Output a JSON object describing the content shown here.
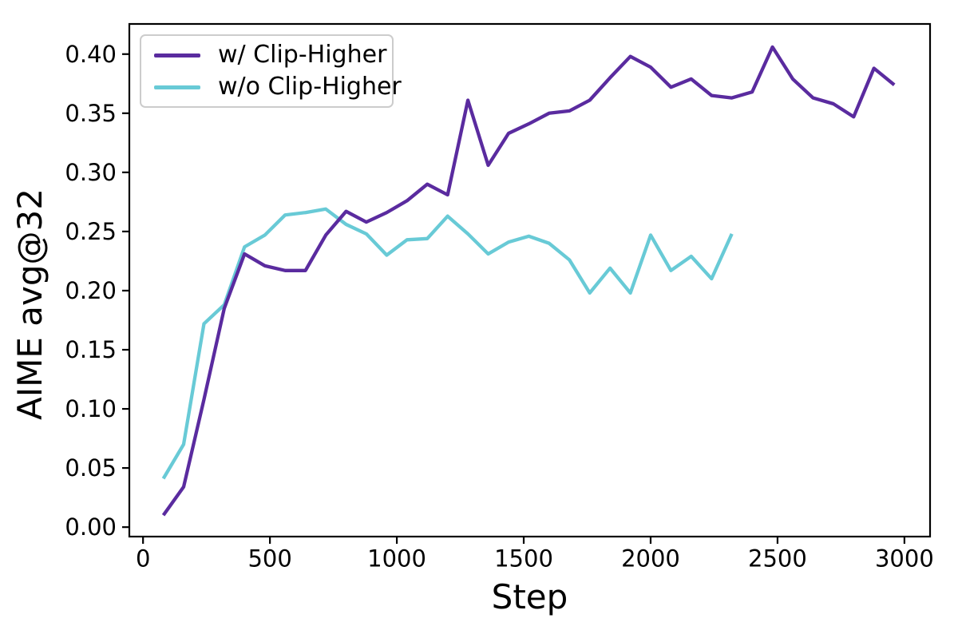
{
  "chart_data": {
    "type": "line",
    "title": "",
    "xlabel": "Step",
    "ylabel": "AIME avg@32",
    "xlim": [
      -54,
      3101
    ],
    "ylim": [
      -0.008,
      0.4255
    ],
    "grid": false,
    "legend_position": "upper-left",
    "x_ticks": [
      0,
      500,
      1000,
      1500,
      2000,
      2500,
      3000
    ],
    "x_tick_labels": [
      "0",
      "500",
      "1000",
      "1500",
      "2000",
      "2500",
      "3000"
    ],
    "y_ticks": [
      0.0,
      0.05,
      0.1,
      0.15,
      0.2,
      0.25,
      0.3,
      0.35,
      0.4
    ],
    "y_tick_labels": [
      "0.00",
      "0.05",
      "0.10",
      "0.15",
      "0.20",
      "0.25",
      "0.30",
      "0.35",
      "0.40"
    ],
    "series": [
      {
        "name": "w/ Clip-Higher",
        "color": "#5a2b9f",
        "x": [
          80,
          160,
          240,
          320,
          400,
          480,
          560,
          640,
          720,
          800,
          880,
          960,
          1040,
          1120,
          1200,
          1280,
          1360,
          1440,
          1520,
          1600,
          1680,
          1760,
          1840,
          1920,
          2000,
          2080,
          2160,
          2240,
          2320,
          2400,
          2480,
          2560,
          2640,
          2720,
          2800,
          2880,
          2960
        ],
        "y": [
          0.01,
          0.034,
          0.108,
          0.185,
          0.231,
          0.221,
          0.217,
          0.217,
          0.247,
          0.267,
          0.258,
          0.266,
          0.276,
          0.29,
          0.281,
          0.361,
          0.306,
          0.333,
          0.341,
          0.35,
          0.352,
          0.361,
          0.38,
          0.398,
          0.389,
          0.372,
          0.379,
          0.365,
          0.363,
          0.368,
          0.406,
          0.379,
          0.363,
          0.358,
          0.347,
          0.388,
          0.374
        ]
      },
      {
        "name": "w/o Clip-Higher",
        "color": "#68cad6",
        "x": [
          80,
          160,
          240,
          320,
          400,
          480,
          560,
          640,
          720,
          800,
          880,
          960,
          1040,
          1120,
          1200,
          1280,
          1360,
          1440,
          1520,
          1600,
          1680,
          1760,
          1840,
          1920,
          2000,
          2080,
          2160,
          2240,
          2320
        ],
        "y": [
          0.041,
          0.07,
          0.172,
          0.188,
          0.237,
          0.247,
          0.264,
          0.266,
          0.269,
          0.256,
          0.248,
          0.23,
          0.243,
          0.244,
          0.263,
          0.248,
          0.231,
          0.241,
          0.246,
          0.24,
          0.226,
          0.198,
          0.219,
          0.198,
          0.247,
          0.217,
          0.229,
          0.21,
          0.248
        ]
      }
    ]
  },
  "colors": {
    "axis": "#000000",
    "tick_label": "#000000",
    "legend_border": "#cccccc",
    "background": "#ffffff"
  }
}
